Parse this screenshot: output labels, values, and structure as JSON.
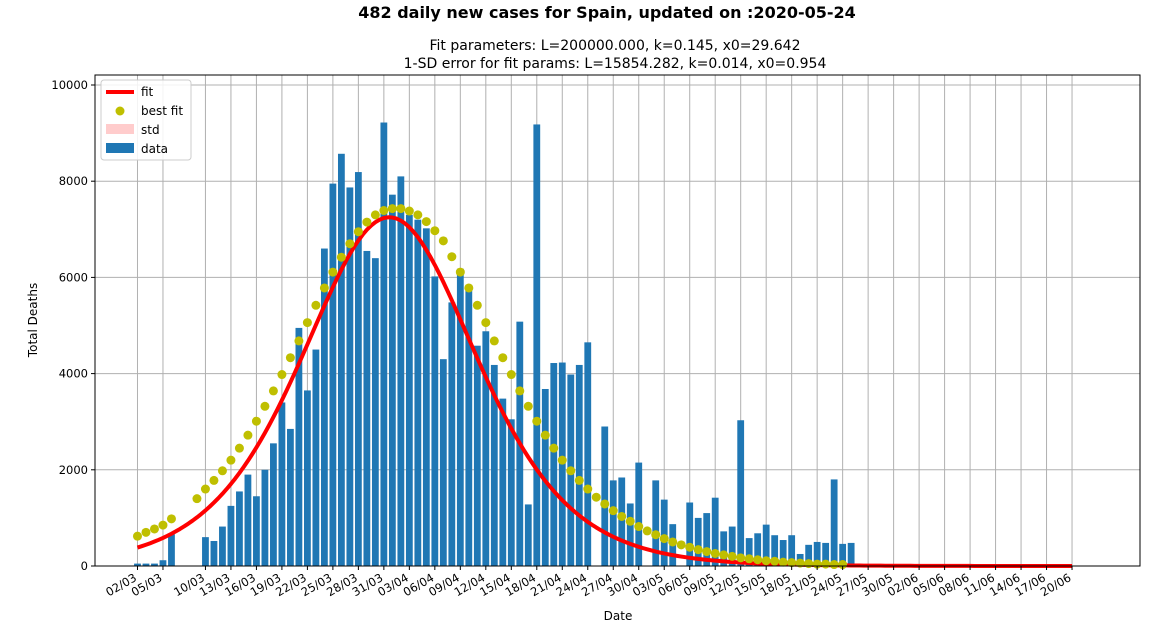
{
  "chart_data": {
    "type": "bar",
    "suptitle": "482 daily new cases for Spain, updated on :2020-05-24",
    "title_line1": "Fit parameters: L=200000.000, k=0.145, x0=29.642",
    "title_line2": "1-SD error for fit params: L=15854.282, k=0.014, x0=0.954",
    "xlabel": "Date",
    "ylabel": "Total Deaths",
    "ylim": [
      0,
      10000
    ],
    "yticks": [
      "0",
      "2000",
      "4000",
      "6000",
      "8000",
      "10000"
    ],
    "grid": true,
    "legend_position": "top-left",
    "legend": [
      "fit",
      "best fit",
      "std",
      "data"
    ],
    "xticks": [
      "02/03",
      "05/03",
      "10/03",
      "13/03",
      "16/03",
      "19/03",
      "22/03",
      "25/03",
      "28/03",
      "31/03",
      "03/04",
      "06/04",
      "09/04",
      "12/04",
      "15/04",
      "18/04",
      "21/04",
      "24/04",
      "27/04",
      "30/04",
      "03/05",
      "06/05",
      "09/05",
      "12/05",
      "15/05",
      "18/05",
      "21/05",
      "24/05",
      "27/05",
      "30/05",
      "02/06",
      "05/06",
      "08/06",
      "11/06",
      "14/06",
      "17/06",
      "20/06"
    ],
    "xtick_day_index": [
      0,
      3,
      8,
      11,
      14,
      17,
      20,
      23,
      26,
      29,
      32,
      35,
      38,
      41,
      44,
      47,
      50,
      53,
      56,
      59,
      62,
      65,
      68,
      71,
      74,
      77,
      80,
      83,
      86,
      89,
      92,
      95,
      98,
      101,
      104,
      107,
      110
    ],
    "xrange_days": [
      -5,
      118
    ],
    "bars": {
      "name": "data",
      "start_date": "02/03",
      "values": [
        50,
        50,
        50,
        120,
        660,
        0,
        0,
        0,
        600,
        520,
        820,
        1250,
        1550,
        1900,
        1450,
        2000,
        2550,
        3400,
        2850,
        4950,
        3650,
        4500,
        6600,
        7950,
        8570,
        7870,
        8190,
        6550,
        6400,
        9220,
        7720,
        8100,
        7300,
        7200,
        7020,
        6020,
        4300,
        5480,
        6180,
        5760,
        4580,
        4880,
        4180,
        3480,
        3050,
        5080,
        1280,
        9180,
        3680,
        4220,
        4230,
        3980,
        4180,
        4650,
        0,
        2900,
        1780,
        1840,
        1300,
        2150,
        0,
        1780,
        1380,
        870,
        0,
        1320,
        1000,
        1100,
        1420,
        720,
        820,
        3030,
        580,
        680,
        860,
        640,
        540,
        640,
        250,
        440,
        500,
        480,
        1800,
        460,
        480
      ]
    },
    "best_fit": {
      "name": "best fit",
      "color": "#bfbf00",
      "day_index": [
        0,
        1,
        2,
        3,
        4,
        7,
        8,
        9,
        10,
        11,
        12,
        13,
        14,
        15,
        16,
        17,
        18,
        19,
        20,
        21,
        22,
        23,
        24,
        25,
        26,
        27,
        28,
        29,
        30,
        31,
        32,
        33,
        34,
        35,
        36,
        37,
        38,
        39,
        40,
        41,
        42,
        43,
        44,
        45,
        46,
        47,
        48,
        49,
        50,
        51,
        52,
        53,
        54,
        55,
        56,
        57,
        58,
        59,
        60,
        61,
        62,
        63,
        64,
        65,
        66,
        67,
        68,
        69,
        70,
        71,
        72,
        73,
        74,
        75,
        76,
        77,
        78,
        79,
        80,
        81,
        82,
        83
      ],
      "values": [
        620,
        700,
        770,
        850,
        980,
        1400,
        1600,
        1780,
        1980,
        2200,
        2450,
        2720,
        3010,
        3320,
        3640,
        3980,
        4330,
        4680,
        5060,
        5420,
        5780,
        6110,
        6420,
        6700,
        6950,
        7150,
        7300,
        7390,
        7430,
        7430,
        7380,
        7300,
        7160,
        6970,
        6760,
        6430,
        6110,
        5780,
        5420,
        5060,
        4680,
        4330,
        3980,
        3640,
        3320,
        3010,
        2720,
        2450,
        2200,
        1980,
        1780,
        1600,
        1430,
        1290,
        1150,
        1030,
        930,
        820,
        730,
        650,
        570,
        500,
        440,
        390,
        340,
        300,
        260,
        230,
        200,
        170,
        150,
        130,
        110,
        100,
        80,
        70,
        60,
        50,
        40,
        40,
        30,
        30
      ]
    },
    "fit": {
      "name": "fit",
      "color": "#ff0000",
      "L": 200000,
      "k": 0.145,
      "x0": 29.642,
      "day_range": [
        0,
        110
      ]
    },
    "colors": {
      "bars": "#1f77b4",
      "fit": "#ff0000",
      "best_fit": "#bfbf00",
      "std": "#ffcccc"
    }
  }
}
